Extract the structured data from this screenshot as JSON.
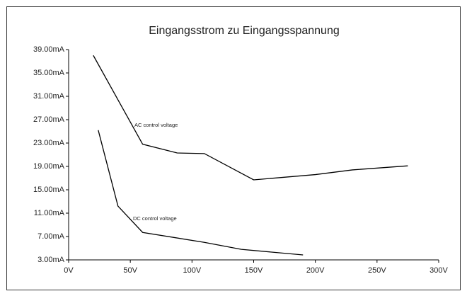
{
  "chart_data": {
    "type": "line",
    "title": "Eingangsstrom zu Eingangsspannung",
    "xlim": [
      0,
      300
    ],
    "ylim": [
      3,
      39
    ],
    "xticks": [
      {
        "value": 0,
        "label": "0V"
      },
      {
        "value": 50,
        "label": "50V"
      },
      {
        "value": 100,
        "label": "100V"
      },
      {
        "value": 150,
        "label": "150V"
      },
      {
        "value": 200,
        "label": "200V"
      },
      {
        "value": 250,
        "label": "250V"
      },
      {
        "value": 300,
        "label": "300V"
      }
    ],
    "yticks": [
      {
        "value": 3,
        "label": "3.00mA"
      },
      {
        "value": 7,
        "label": "7.00mA"
      },
      {
        "value": 11,
        "label": "11.00mA"
      },
      {
        "value": 15,
        "label": "15.00mA"
      },
      {
        "value": 19,
        "label": "19.00mA"
      },
      {
        "value": 23,
        "label": "23.00mA"
      },
      {
        "value": 27,
        "label": "27.00mA"
      },
      {
        "value": 31,
        "label": "31.00mA"
      },
      {
        "value": 35,
        "label": "35.00mA"
      },
      {
        "value": 39,
        "label": "39.00mA"
      }
    ],
    "grid": false,
    "series": [
      {
        "name": "AC control voltage",
        "color": "#000000",
        "x": [
          20,
          60,
          88,
          110,
          150,
          200,
          230,
          275
        ],
        "values": [
          38,
          22.8,
          21.3,
          21.2,
          16.7,
          17.6,
          18.4,
          19.1
        ]
      },
      {
        "name": "DC control voltage",
        "color": "#000000",
        "x": [
          24,
          40,
          60,
          110,
          140,
          190
        ],
        "values": [
          25.2,
          12.2,
          7.7,
          6.0,
          4.8,
          3.85
        ]
      }
    ]
  }
}
